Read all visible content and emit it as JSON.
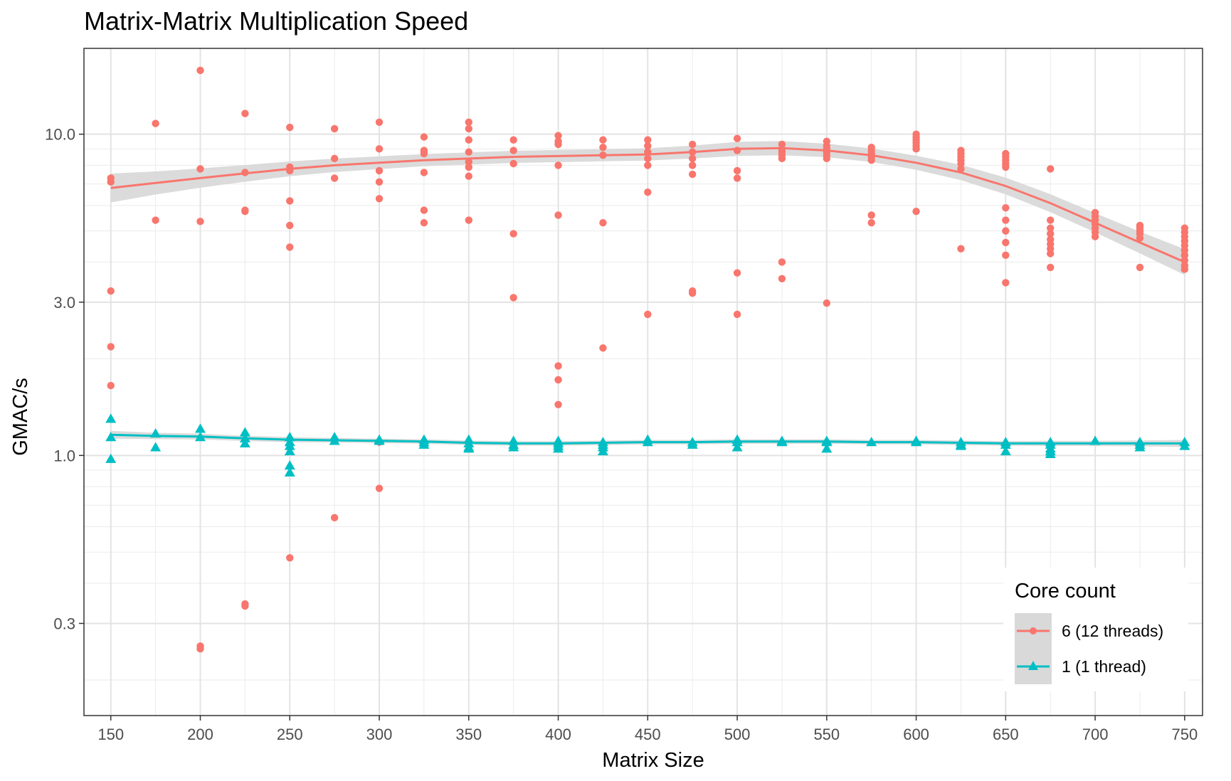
{
  "chart_data": {
    "type": "scatter",
    "title": "Matrix-Matrix Multiplication Speed",
    "xlabel": "Matrix Size",
    "ylabel": "GMAC/s",
    "xlim": [
      135,
      760
    ],
    "ylim": [
      0.155,
      18.5
    ],
    "yscale": "log10",
    "x_ticks": [
      150,
      200,
      250,
      300,
      350,
      400,
      450,
      500,
      550,
      600,
      650,
      700,
      750
    ],
    "y_ticks": [
      0.3,
      1.0,
      3.0,
      10.0
    ],
    "y_tick_labels": [
      "0.3",
      "1.0",
      "3.0",
      "10.0"
    ],
    "y_minor_ticks": [
      0.2,
      0.4,
      0.5,
      0.6,
      0.7,
      0.8,
      0.9,
      2,
      4,
      5,
      6,
      7,
      8,
      9
    ],
    "grid": true,
    "legend": {
      "title": "Core count",
      "position": "bottom-right-inside"
    },
    "colors": {
      "multi": "#F8766D",
      "single": "#00BFC4",
      "ribbon": "#d9d9d9"
    },
    "series": [
      {
        "name": "6 (12 threads)",
        "marker": "circle",
        "points": [
          [
            150,
            7.3
          ],
          [
            150,
            7.1
          ],
          [
            150,
            3.25
          ],
          [
            150,
            2.18
          ],
          [
            150,
            1.65
          ],
          [
            175,
            10.8
          ],
          [
            175,
            5.4
          ],
          [
            200,
            15.8
          ],
          [
            200,
            7.8
          ],
          [
            200,
            5.35
          ],
          [
            200,
            0.25
          ],
          [
            200,
            0.255
          ],
          [
            225,
            11.6
          ],
          [
            225,
            7.6
          ],
          [
            225,
            5.8
          ],
          [
            225,
            5.75
          ],
          [
            225,
            0.345
          ],
          [
            225,
            0.34
          ],
          [
            250,
            10.5
          ],
          [
            250,
            7.9
          ],
          [
            250,
            7.7
          ],
          [
            250,
            6.2
          ],
          [
            250,
            5.2
          ],
          [
            250,
            4.45
          ],
          [
            250,
            0.48
          ],
          [
            275,
            10.4
          ],
          [
            275,
            8.4
          ],
          [
            275,
            7.3
          ],
          [
            275,
            0.64
          ],
          [
            300,
            10.9
          ],
          [
            300,
            9.0
          ],
          [
            300,
            7.7
          ],
          [
            300,
            7.1
          ],
          [
            300,
            6.3
          ],
          [
            300,
            1.1
          ],
          [
            300,
            0.79
          ],
          [
            325,
            9.8
          ],
          [
            325,
            8.9
          ],
          [
            325,
            8.7
          ],
          [
            325,
            7.6
          ],
          [
            325,
            5.8
          ],
          [
            325,
            5.3
          ],
          [
            350,
            10.9
          ],
          [
            350,
            10.4
          ],
          [
            350,
            9.6
          ],
          [
            350,
            8.8
          ],
          [
            350,
            8.2
          ],
          [
            350,
            7.9
          ],
          [
            350,
            7.4
          ],
          [
            350,
            5.4
          ],
          [
            375,
            9.6
          ],
          [
            375,
            8.9
          ],
          [
            375,
            8.1
          ],
          [
            375,
            4.9
          ],
          [
            375,
            3.1
          ],
          [
            400,
            9.9
          ],
          [
            400,
            9.5
          ],
          [
            400,
            9.3
          ],
          [
            400,
            8.0
          ],
          [
            400,
            5.6
          ],
          [
            400,
            1.9
          ],
          [
            400,
            1.72
          ],
          [
            400,
            1.44
          ],
          [
            425,
            9.6
          ],
          [
            425,
            9.1
          ],
          [
            425,
            8.6
          ],
          [
            425,
            5.3
          ],
          [
            425,
            2.16
          ],
          [
            425,
            1.08
          ],
          [
            450,
            9.6
          ],
          [
            450,
            9.2
          ],
          [
            450,
            8.8
          ],
          [
            450,
            8.4
          ],
          [
            450,
            8.0
          ],
          [
            450,
            6.6
          ],
          [
            450,
            2.75
          ],
          [
            475,
            9.3
          ],
          [
            475,
            8.8
          ],
          [
            475,
            8.4
          ],
          [
            475,
            8.0
          ],
          [
            475,
            7.5
          ],
          [
            475,
            3.25
          ],
          [
            475,
            3.2
          ],
          [
            500,
            9.7
          ],
          [
            500,
            8.9
          ],
          [
            500,
            7.7
          ],
          [
            500,
            7.3
          ],
          [
            500,
            3.7
          ],
          [
            500,
            2.75
          ],
          [
            525,
            9.3
          ],
          [
            525,
            9.0
          ],
          [
            525,
            8.8
          ],
          [
            525,
            8.6
          ],
          [
            525,
            8.4
          ],
          [
            525,
            4.0
          ],
          [
            525,
            3.55
          ],
          [
            550,
            9.5
          ],
          [
            550,
            9.2
          ],
          [
            550,
            9.0
          ],
          [
            550,
            8.8
          ],
          [
            550,
            8.6
          ],
          [
            550,
            8.4
          ],
          [
            550,
            2.98
          ],
          [
            575,
            9.1
          ],
          [
            575,
            8.9
          ],
          [
            575,
            8.7
          ],
          [
            575,
            8.5
          ],
          [
            575,
            8.3
          ],
          [
            575,
            5.6
          ],
          [
            575,
            5.3
          ],
          [
            600,
            10.0
          ],
          [
            600,
            9.8
          ],
          [
            600,
            9.6
          ],
          [
            600,
            9.4
          ],
          [
            600,
            9.2
          ],
          [
            600,
            9.0
          ],
          [
            600,
            5.75
          ],
          [
            625,
            8.9
          ],
          [
            625,
            8.7
          ],
          [
            625,
            8.5
          ],
          [
            625,
            8.3
          ],
          [
            625,
            8.1
          ],
          [
            625,
            7.8
          ],
          [
            625,
            4.4
          ],
          [
            650,
            8.7
          ],
          [
            650,
            8.5
          ],
          [
            650,
            8.3
          ],
          [
            650,
            8.1
          ],
          [
            650,
            7.9
          ],
          [
            650,
            5.9
          ],
          [
            650,
            5.4
          ],
          [
            650,
            5.0
          ],
          [
            650,
            4.6
          ],
          [
            650,
            4.2
          ],
          [
            650,
            3.45
          ],
          [
            675,
            7.8
          ],
          [
            675,
            5.4
          ],
          [
            675,
            5.1
          ],
          [
            675,
            4.9
          ],
          [
            675,
            4.7
          ],
          [
            675,
            4.55
          ],
          [
            675,
            4.4
          ],
          [
            675,
            4.25
          ],
          [
            675,
            3.85
          ],
          [
            700,
            5.7
          ],
          [
            700,
            5.55
          ],
          [
            700,
            5.4
          ],
          [
            700,
            5.25
          ],
          [
            700,
            5.1
          ],
          [
            700,
            4.95
          ],
          [
            700,
            4.8
          ],
          [
            725,
            5.2
          ],
          [
            725,
            5.1
          ],
          [
            725,
            5.0
          ],
          [
            725,
            4.9
          ],
          [
            725,
            4.75
          ],
          [
            725,
            3.85
          ],
          [
            750,
            5.1
          ],
          [
            750,
            4.95
          ],
          [
            750,
            4.8
          ],
          [
            750,
            4.65
          ],
          [
            750,
            4.5
          ],
          [
            750,
            4.35
          ],
          [
            750,
            4.2
          ],
          [
            750,
            4.05
          ],
          [
            750,
            3.9
          ],
          [
            750,
            3.8
          ]
        ],
        "smooth": [
          [
            150,
            6.8
          ],
          [
            175,
            7.05
          ],
          [
            200,
            7.3
          ],
          [
            225,
            7.55
          ],
          [
            250,
            7.8
          ],
          [
            275,
            8.0
          ],
          [
            300,
            8.15
          ],
          [
            325,
            8.3
          ],
          [
            350,
            8.4
          ],
          [
            375,
            8.5
          ],
          [
            400,
            8.55
          ],
          [
            425,
            8.6
          ],
          [
            450,
            8.65
          ],
          [
            475,
            8.8
          ],
          [
            500,
            9.0
          ],
          [
            525,
            9.05
          ],
          [
            550,
            8.9
          ],
          [
            575,
            8.6
          ],
          [
            600,
            8.15
          ],
          [
            625,
            7.6
          ],
          [
            650,
            6.9
          ],
          [
            675,
            6.1
          ],
          [
            700,
            5.3
          ],
          [
            725,
            4.6
          ],
          [
            750,
            4.0
          ]
        ],
        "ribbon_halfwidth_log10": [
          0.045,
          0.036,
          0.03,
          0.026,
          0.023,
          0.021,
          0.02,
          0.019,
          0.019,
          0.019,
          0.019,
          0.019,
          0.019,
          0.02,
          0.022,
          0.022,
          0.021,
          0.021,
          0.022,
          0.024,
          0.026,
          0.028,
          0.03,
          0.034,
          0.04
        ]
      },
      {
        "name": "1 (1 thread)",
        "marker": "triangle",
        "points": [
          [
            150,
            1.3
          ],
          [
            150,
            1.14
          ],
          [
            150,
            0.975
          ],
          [
            175,
            1.17
          ],
          [
            175,
            1.06
          ],
          [
            200,
            1.21
          ],
          [
            200,
            1.14
          ],
          [
            225,
            1.18
          ],
          [
            225,
            1.13
          ],
          [
            225,
            1.09
          ],
          [
            250,
            1.14
          ],
          [
            250,
            1.1
          ],
          [
            250,
            1.07
          ],
          [
            250,
            1.03
          ],
          [
            250,
            0.93
          ],
          [
            250,
            0.885
          ],
          [
            275,
            1.14
          ],
          [
            275,
            1.11
          ],
          [
            300,
            1.11
          ],
          [
            300,
            1.12
          ],
          [
            325,
            1.12
          ],
          [
            325,
            1.1
          ],
          [
            325,
            1.08
          ],
          [
            350,
            1.12
          ],
          [
            350,
            1.09
          ],
          [
            350,
            1.06
          ],
          [
            350,
            1.05
          ],
          [
            375,
            1.11
          ],
          [
            375,
            1.08
          ],
          [
            375,
            1.06
          ],
          [
            400,
            1.11
          ],
          [
            400,
            1.09
          ],
          [
            400,
            1.07
          ],
          [
            400,
            1.05
          ],
          [
            425,
            1.1
          ],
          [
            425,
            1.08
          ],
          [
            425,
            1.06
          ],
          [
            425,
            1.03
          ],
          [
            450,
            1.12
          ],
          [
            450,
            1.1
          ],
          [
            475,
            1.1
          ],
          [
            475,
            1.08
          ],
          [
            500,
            1.12
          ],
          [
            500,
            1.1
          ],
          [
            500,
            1.06
          ],
          [
            525,
            1.11
          ],
          [
            525,
            1.1
          ],
          [
            550,
            1.11
          ],
          [
            550,
            1.1
          ],
          [
            550,
            1.05
          ],
          [
            575,
            1.1
          ],
          [
            600,
            1.11
          ],
          [
            600,
            1.1
          ],
          [
            625,
            1.1
          ],
          [
            625,
            1.08
          ],
          [
            625,
            1.07
          ],
          [
            650,
            1.1
          ],
          [
            650,
            1.08
          ],
          [
            650,
            1.03
          ],
          [
            675,
            1.1
          ],
          [
            675,
            1.08
          ],
          [
            675,
            1.05
          ],
          [
            675,
            1.03
          ],
          [
            675,
            1.01
          ],
          [
            700,
            1.11
          ],
          [
            725,
            1.1
          ],
          [
            725,
            1.08
          ],
          [
            725,
            1.06
          ],
          [
            750,
            1.1
          ],
          [
            750,
            1.07
          ]
        ],
        "smooth": [
          [
            150,
            1.16
          ],
          [
            175,
            1.15
          ],
          [
            200,
            1.145
          ],
          [
            225,
            1.13
          ],
          [
            250,
            1.12
          ],
          [
            275,
            1.115
          ],
          [
            300,
            1.11
          ],
          [
            325,
            1.105
          ],
          [
            350,
            1.095
          ],
          [
            375,
            1.09
          ],
          [
            400,
            1.09
          ],
          [
            425,
            1.095
          ],
          [
            450,
            1.1
          ],
          [
            475,
            1.1
          ],
          [
            500,
            1.105
          ],
          [
            525,
            1.105
          ],
          [
            550,
            1.105
          ],
          [
            575,
            1.1
          ],
          [
            600,
            1.1
          ],
          [
            625,
            1.095
          ],
          [
            650,
            1.09
          ],
          [
            675,
            1.09
          ],
          [
            700,
            1.09
          ],
          [
            725,
            1.09
          ],
          [
            750,
            1.09
          ]
        ],
        "ribbon_halfwidth_log10": [
          0.012,
          0.01,
          0.009,
          0.008,
          0.008,
          0.007,
          0.007,
          0.007,
          0.007,
          0.007,
          0.007,
          0.007,
          0.007,
          0.007,
          0.007,
          0.007,
          0.007,
          0.007,
          0.007,
          0.007,
          0.007,
          0.008,
          0.008,
          0.009,
          0.011
        ]
      }
    ]
  }
}
